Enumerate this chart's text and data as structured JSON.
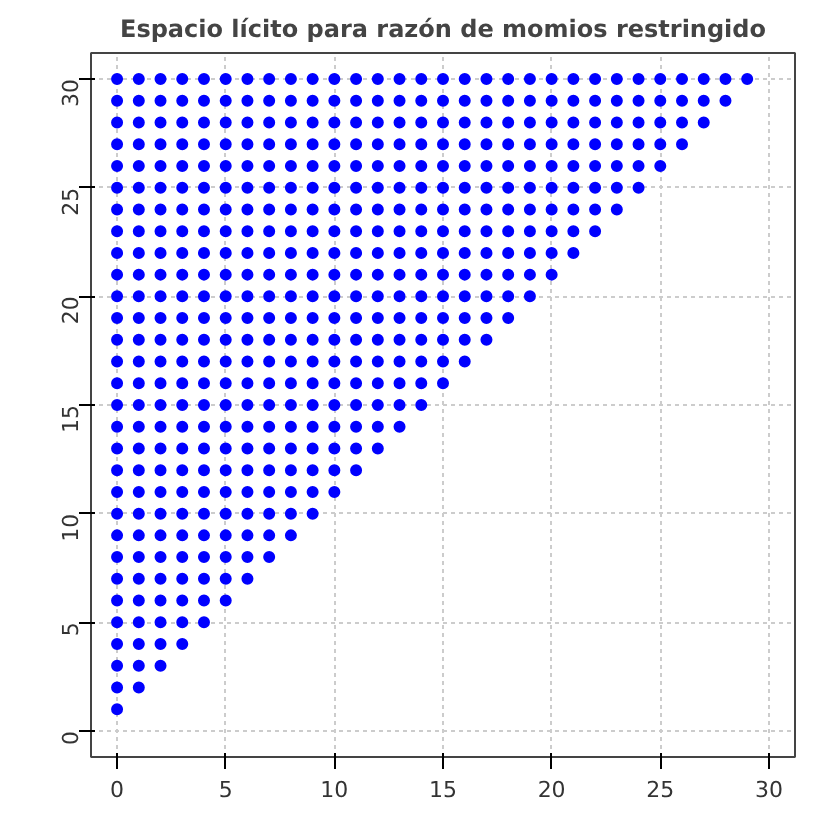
{
  "chart_data": {
    "type": "scatter",
    "title": "Espacio lícito para razón de momios restringido",
    "marker": "circle",
    "grid": true,
    "xlim": [
      -1.2,
      31.2
    ],
    "ylim": [
      -1.2,
      31.2
    ],
    "xticks": [
      0,
      5,
      10,
      15,
      20,
      25,
      30
    ],
    "yticks": [
      0,
      5,
      10,
      15,
      20,
      25,
      30
    ],
    "series": [
      {
        "color": "#0000ff",
        "x": [
          0,
          0,
          1,
          0,
          1,
          2,
          0,
          1,
          2,
          3,
          0,
          1,
          2,
          3,
          4,
          0,
          1,
          2,
          3,
          4,
          5,
          0,
          1,
          2,
          3,
          4,
          5,
          6,
          0,
          1,
          2,
          3,
          4,
          5,
          6,
          7,
          0,
          1,
          2,
          3,
          4,
          5,
          6,
          7,
          8,
          0,
          1,
          2,
          3,
          4,
          5,
          6,
          7,
          8,
          9,
          0,
          1,
          2,
          3,
          4,
          5,
          6,
          7,
          8,
          9,
          10,
          0,
          1,
          2,
          3,
          4,
          5,
          6,
          7,
          8,
          9,
          10,
          11,
          0,
          1,
          2,
          3,
          4,
          5,
          6,
          7,
          8,
          9,
          10,
          11,
          12,
          0,
          1,
          2,
          3,
          4,
          5,
          6,
          7,
          8,
          9,
          10,
          11,
          12,
          13,
          0,
          1,
          2,
          3,
          4,
          5,
          6,
          7,
          8,
          9,
          10,
          11,
          12,
          13,
          14,
          0,
          1,
          2,
          3,
          4,
          5,
          6,
          7,
          8,
          9,
          10,
          11,
          12,
          13,
          14,
          15,
          0,
          1,
          2,
          3,
          4,
          5,
          6,
          7,
          8,
          9,
          10,
          11,
          12,
          13,
          14,
          15,
          16,
          0,
          1,
          2,
          3,
          4,
          5,
          6,
          7,
          8,
          9,
          10,
          11,
          12,
          13,
          14,
          15,
          16,
          17,
          0,
          1,
          2,
          3,
          4,
          5,
          6,
          7,
          8,
          9,
          10,
          11,
          12,
          13,
          14,
          15,
          16,
          17,
          18,
          0,
          1,
          2,
          3,
          4,
          5,
          6,
          7,
          8,
          9,
          10,
          11,
          12,
          13,
          14,
          15,
          16,
          17,
          18,
          19,
          0,
          1,
          2,
          3,
          4,
          5,
          6,
          7,
          8,
          9,
          10,
          11,
          12,
          13,
          14,
          15,
          16,
          17,
          18,
          19,
          20,
          0,
          1,
          2,
          3,
          4,
          5,
          6,
          7,
          8,
          9,
          10,
          11,
          12,
          13,
          14,
          15,
          16,
          17,
          18,
          19,
          20,
          21,
          0,
          1,
          2,
          3,
          4,
          5,
          6,
          7,
          8,
          9,
          10,
          11,
          12,
          13,
          14,
          15,
          16,
          17,
          18,
          19,
          20,
          21,
          22,
          0,
          1,
          2,
          3,
          4,
          5,
          6,
          7,
          8,
          9,
          10,
          11,
          12,
          13,
          14,
          15,
          16,
          17,
          18,
          19,
          20,
          21,
          22,
          23,
          0,
          1,
          2,
          3,
          4,
          5,
          6,
          7,
          8,
          9,
          10,
          11,
          12,
          13,
          14,
          15,
          16,
          17,
          18,
          19,
          20,
          21,
          22,
          23,
          24,
          0,
          1,
          2,
          3,
          4,
          5,
          6,
          7,
          8,
          9,
          10,
          11,
          12,
          13,
          14,
          15,
          16,
          17,
          18,
          19,
          20,
          21,
          22,
          23,
          24,
          25,
          0,
          1,
          2,
          3,
          4,
          5,
          6,
          7,
          8,
          9,
          10,
          11,
          12,
          13,
          14,
          15,
          16,
          17,
          18,
          19,
          20,
          21,
          22,
          23,
          24,
          25,
          26,
          0,
          1,
          2,
          3,
          4,
          5,
          6,
          7,
          8,
          9,
          10,
          11,
          12,
          13,
          14,
          15,
          16,
          17,
          18,
          19,
          20,
          21,
          22,
          23,
          24,
          25,
          26,
          27,
          0,
          1,
          2,
          3,
          4,
          5,
          6,
          7,
          8,
          9,
          10,
          11,
          12,
          13,
          14,
          15,
          16,
          17,
          18,
          19,
          20,
          21,
          22,
          23,
          24,
          25,
          26,
          27,
          28,
          0,
          1,
          2,
          3,
          4,
          5,
          6,
          7,
          8,
          9,
          10,
          11,
          12,
          13,
          14,
          15,
          16,
          17,
          18,
          19,
          20,
          21,
          22,
          23,
          24,
          25,
          26,
          27,
          28,
          29
        ],
        "values": [
          1,
          2,
          2,
          3,
          3,
          3,
          4,
          4,
          4,
          4,
          5,
          5,
          5,
          5,
          5,
          6,
          6,
          6,
          6,
          6,
          6,
          7,
          7,
          7,
          7,
          7,
          7,
          7,
          8,
          8,
          8,
          8,
          8,
          8,
          8,
          8,
          9,
          9,
          9,
          9,
          9,
          9,
          9,
          9,
          9,
          10,
          10,
          10,
          10,
          10,
          10,
          10,
          10,
          10,
          10,
          11,
          11,
          11,
          11,
          11,
          11,
          11,
          11,
          11,
          11,
          11,
          12,
          12,
          12,
          12,
          12,
          12,
          12,
          12,
          12,
          12,
          12,
          12,
          13,
          13,
          13,
          13,
          13,
          13,
          13,
          13,
          13,
          13,
          13,
          13,
          13,
          14,
          14,
          14,
          14,
          14,
          14,
          14,
          14,
          14,
          14,
          14,
          14,
          14,
          14,
          15,
          15,
          15,
          15,
          15,
          15,
          15,
          15,
          15,
          15,
          15,
          15,
          15,
          15,
          15,
          16,
          16,
          16,
          16,
          16,
          16,
          16,
          16,
          16,
          16,
          16,
          16,
          16,
          16,
          16,
          16,
          17,
          17,
          17,
          17,
          17,
          17,
          17,
          17,
          17,
          17,
          17,
          17,
          17,
          17,
          17,
          17,
          17,
          18,
          18,
          18,
          18,
          18,
          18,
          18,
          18,
          18,
          18,
          18,
          18,
          18,
          18,
          18,
          18,
          18,
          18,
          19,
          19,
          19,
          19,
          19,
          19,
          19,
          19,
          19,
          19,
          19,
          19,
          19,
          19,
          19,
          19,
          19,
          19,
          19,
          20,
          20,
          20,
          20,
          20,
          20,
          20,
          20,
          20,
          20,
          20,
          20,
          20,
          20,
          20,
          20,
          20,
          20,
          20,
          20,
          21,
          21,
          21,
          21,
          21,
          21,
          21,
          21,
          21,
          21,
          21,
          21,
          21,
          21,
          21,
          21,
          21,
          21,
          21,
          21,
          21,
          22,
          22,
          22,
          22,
          22,
          22,
          22,
          22,
          22,
          22,
          22,
          22,
          22,
          22,
          22,
          22,
          22,
          22,
          22,
          22,
          22,
          22,
          23,
          23,
          23,
          23,
          23,
          23,
          23,
          23,
          23,
          23,
          23,
          23,
          23,
          23,
          23,
          23,
          23,
          23,
          23,
          23,
          23,
          23,
          23,
          24,
          24,
          24,
          24,
          24,
          24,
          24,
          24,
          24,
          24,
          24,
          24,
          24,
          24,
          24,
          24,
          24,
          24,
          24,
          24,
          24,
          24,
          24,
          24,
          25,
          25,
          25,
          25,
          25,
          25,
          25,
          25,
          25,
          25,
          25,
          25,
          25,
          25,
          25,
          25,
          25,
          25,
          25,
          25,
          25,
          25,
          25,
          25,
          25,
          26,
          26,
          26,
          26,
          26,
          26,
          26,
          26,
          26,
          26,
          26,
          26,
          26,
          26,
          26,
          26,
          26,
          26,
          26,
          26,
          26,
          26,
          26,
          26,
          26,
          26,
          27,
          27,
          27,
          27,
          27,
          27,
          27,
          27,
          27,
          27,
          27,
          27,
          27,
          27,
          27,
          27,
          27,
          27,
          27,
          27,
          27,
          27,
          27,
          27,
          27,
          27,
          27,
          28,
          28,
          28,
          28,
          28,
          28,
          28,
          28,
          28,
          28,
          28,
          28,
          28,
          28,
          28,
          28,
          28,
          28,
          28,
          28,
          28,
          28,
          28,
          28,
          28,
          28,
          28,
          28,
          29,
          29,
          29,
          29,
          29,
          29,
          29,
          29,
          29,
          29,
          29,
          29,
          29,
          29,
          29,
          29,
          29,
          29,
          29,
          29,
          29,
          29,
          29,
          29,
          29,
          29,
          29,
          29,
          29,
          30,
          30,
          30,
          30,
          30,
          30,
          30,
          30,
          30,
          30,
          30,
          30,
          30,
          30,
          30,
          30,
          30,
          30,
          30,
          30,
          30,
          30,
          30,
          30,
          30,
          30,
          30,
          30,
          30,
          30
        ]
      }
    ]
  }
}
